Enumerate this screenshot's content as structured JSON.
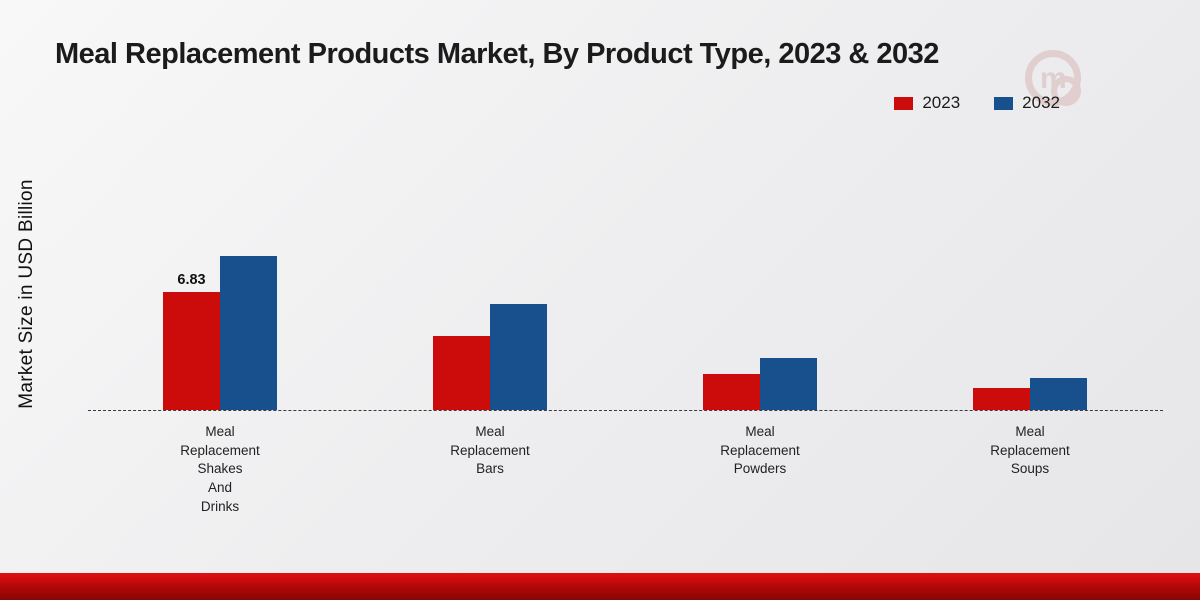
{
  "title": "Meal Replacement Products Market, By Product Type, 2023 & 2032",
  "y_axis_label": "Market Size in USD Billion",
  "legend": [
    {
      "label": "2023",
      "color": "#cc0b0b"
    },
    {
      "label": "2032",
      "color": "#17508d"
    }
  ],
  "colors": {
    "series_2023": "#cc0b0b",
    "series_2032": "#17508d",
    "bottom_strip": "#b80808"
  },
  "chart_data": {
    "type": "bar",
    "categories": [
      [
        "Meal",
        "Replacement",
        "Shakes",
        "And",
        "Drinks"
      ],
      [
        "Meal",
        "Replacement",
        "Bars"
      ],
      [
        "Meal",
        "Replacement",
        "Powders"
      ],
      [
        "Meal",
        "Replacement",
        "Soups"
      ]
    ],
    "series": [
      {
        "name": "2023",
        "color": "#cc0b0b",
        "values": [
          6.83,
          4.3,
          2.1,
          1.25
        ]
      },
      {
        "name": "2032",
        "color": "#17508d",
        "values": [
          8.9,
          6.1,
          3.0,
          1.85
        ]
      }
    ],
    "data_labels": [
      {
        "series": "2023",
        "category_index": 0,
        "text": "6.83"
      }
    ],
    "title": "Meal Replacement Products Market, By Product Type, 2023 & 2032",
    "xlabel": "",
    "ylabel": "Market Size in USD Billion",
    "ylim": [
      0,
      10
    ],
    "grid": false,
    "baseline_style": "dashed",
    "legend_position": "top-right"
  }
}
